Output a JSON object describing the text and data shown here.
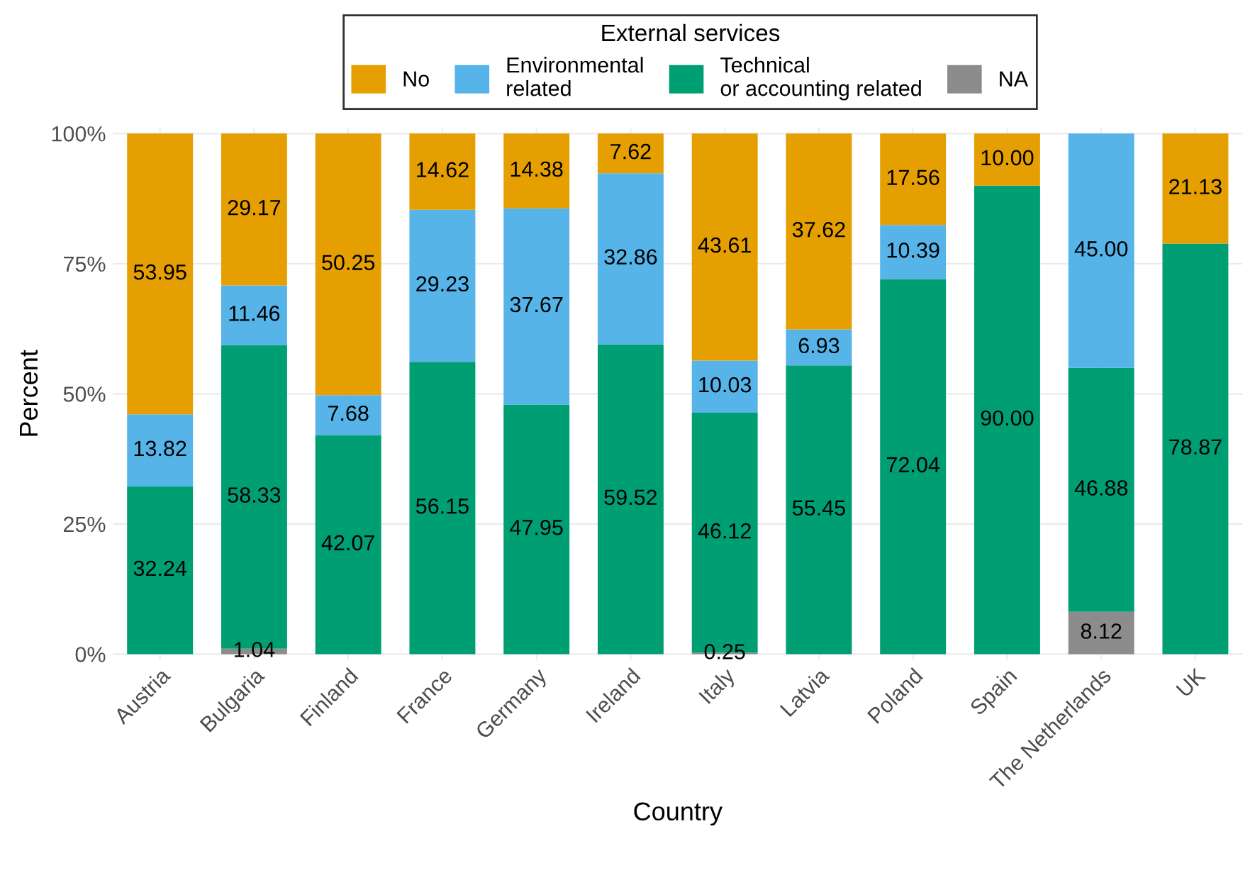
{
  "chart_data": {
    "type": "bar",
    "stacked": true,
    "xlabel": "Country",
    "ylabel": "Percent",
    "legend_title": "External services",
    "legend": "top",
    "grid": true,
    "categories": [
      "Austria",
      "Bulgaria",
      "Finland",
      "France",
      "Germany",
      "Ireland",
      "Italy",
      "Latvia",
      "Poland",
      "Spain",
      "The Netherlands",
      "UK"
    ],
    "ylim": [
      -1,
      101
    ],
    "yticks": [
      {
        "value": 0,
        "label": "0%"
      },
      {
        "value": 25,
        "label": "25%"
      },
      {
        "value": 50,
        "label": "50%"
      },
      {
        "value": 75,
        "label": "75%"
      },
      {
        "value": 100,
        "label": "100%"
      }
    ],
    "series": [
      {
        "name": "NA",
        "color": "#8c8c8c",
        "values": [
          null,
          1.04,
          null,
          null,
          null,
          null,
          0.25,
          null,
          null,
          null,
          8.12,
          null
        ],
        "value_labels": [
          null,
          "1.04",
          null,
          null,
          null,
          null,
          "0.25",
          null,
          null,
          null,
          "8.12",
          null
        ]
      },
      {
        "name": "Technical\nor accounting related",
        "color": "#009e73",
        "values": [
          32.24,
          58.33,
          42.07,
          56.15,
          47.95,
          59.52,
          46.12,
          55.45,
          72.04,
          90.0,
          46.88,
          78.87
        ],
        "value_labels": [
          "32.24",
          "58.33",
          "42.07",
          "56.15",
          "47.95",
          "59.52",
          "46.12",
          "55.45",
          "72.04",
          "90.00",
          "46.88",
          "78.87"
        ]
      },
      {
        "name": "Environmental\nrelated",
        "color": "#56b4e9",
        "values": [
          13.82,
          11.46,
          7.68,
          29.23,
          37.67,
          32.86,
          10.03,
          6.93,
          10.39,
          null,
          45.0,
          null
        ],
        "value_labels": [
          "13.82",
          "11.46",
          "7.68",
          "29.23",
          "37.67",
          "32.86",
          "10.03",
          "6.93",
          "10.39",
          null,
          "45.00",
          null
        ]
      },
      {
        "name": "No",
        "color": "#e69f00",
        "values": [
          53.95,
          29.17,
          50.25,
          14.62,
          14.38,
          7.62,
          43.61,
          37.62,
          17.56,
          10.0,
          null,
          21.13
        ],
        "value_labels": [
          "53.95",
          "29.17",
          "50.25",
          "14.62",
          "14.38",
          "7.62",
          "43.61",
          "37.62",
          "17.56",
          "10.00",
          null,
          "21.13"
        ]
      }
    ]
  }
}
